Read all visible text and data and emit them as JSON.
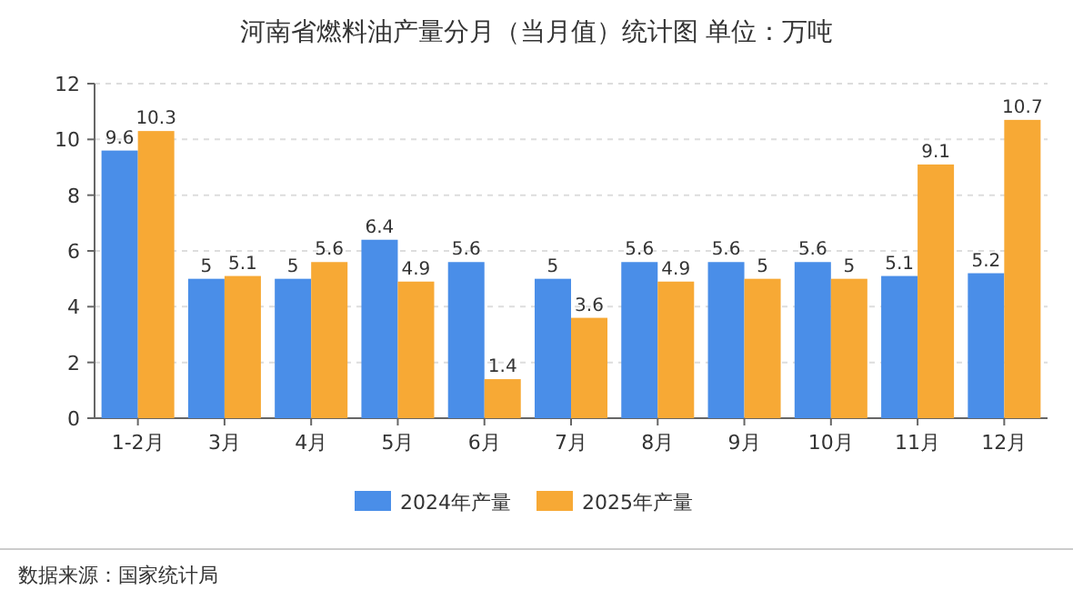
{
  "chart_data": {
    "type": "bar",
    "title": "河南省燃料油产量分月（当月值）统计图 单位：万吨",
    "categories": [
      "1-2月",
      "3月",
      "4月",
      "5月",
      "6月",
      "7月",
      "8月",
      "9月",
      "10月",
      "11月",
      "12月"
    ],
    "series": [
      {
        "name": "2024年产量",
        "color": "#4a8ee8",
        "values": [
          9.6,
          5,
          5,
          6.4,
          5.6,
          5,
          5.6,
          5.6,
          5.6,
          5.1,
          5.2
        ]
      },
      {
        "name": "2025年产量",
        "color": "#f7a935",
        "values": [
          10.3,
          5.1,
          5.6,
          4.9,
          1.4,
          3.6,
          4.9,
          5,
          5,
          9.1,
          10.7
        ]
      }
    ],
    "ylim": [
      0,
      12
    ],
    "yticks": [
      0,
      2,
      4,
      6,
      8,
      10,
      12
    ],
    "grid": "y",
    "legend": "bottom",
    "data_labels": true,
    "annotations": [
      "数据来源：国家统计局"
    ]
  }
}
